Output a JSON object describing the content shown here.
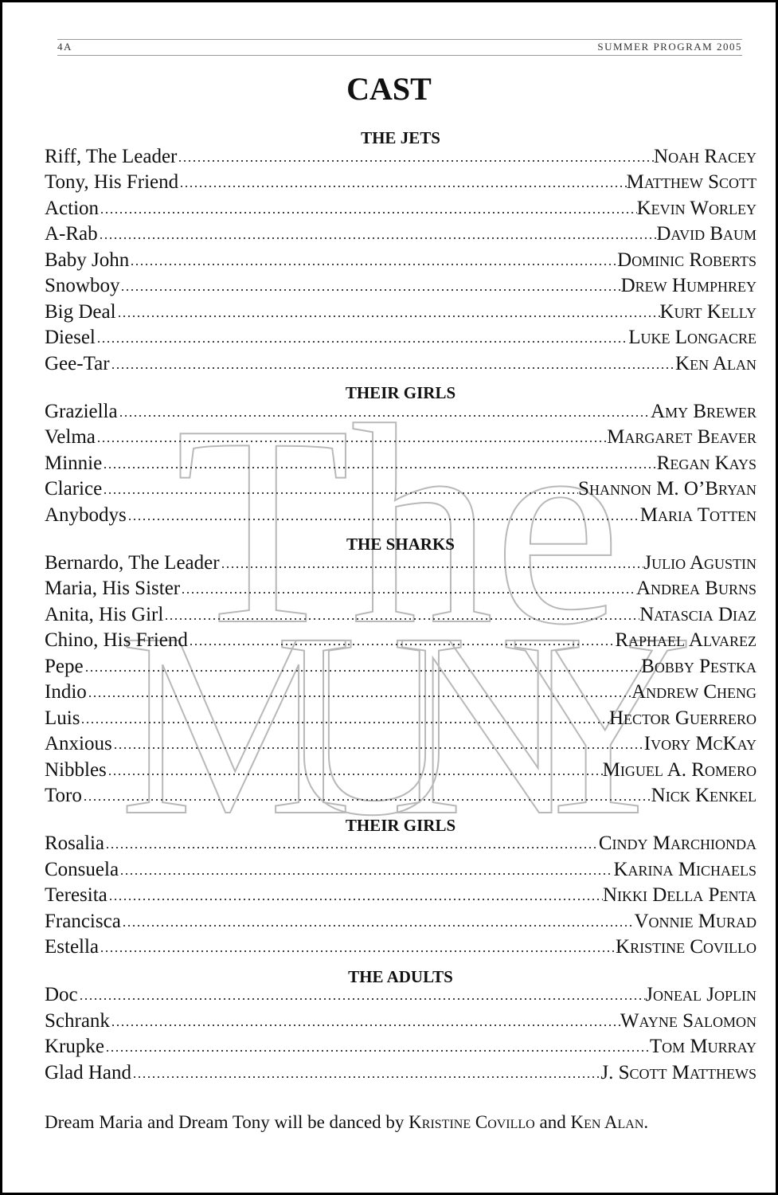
{
  "header": {
    "page_number": "4A",
    "publication": "SUMMER PROGRAM 2005"
  },
  "title": "CAST",
  "watermark": {
    "line1": "The",
    "line2": "MUNY"
  },
  "sections": [
    {
      "heading": "THE JETS",
      "rows": [
        {
          "role": "Riff, The Leader",
          "actor": "Noah Racey"
        },
        {
          "role": "Tony, His Friend",
          "actor": "Matthew Scott"
        },
        {
          "role": "Action",
          "actor": "Kevin Worley"
        },
        {
          "role": "A-Rab",
          "actor": "David Baum"
        },
        {
          "role": "Baby John",
          "actor": "Dominic Roberts"
        },
        {
          "role": "Snowboy",
          "actor": "Drew Humphrey"
        },
        {
          "role": "Big Deal",
          "actor": "Kurt Kelly"
        },
        {
          "role": "Diesel",
          "actor": "Luke Longacre"
        },
        {
          "role": "Gee-Tar",
          "actor": "Ken Alan"
        }
      ]
    },
    {
      "heading": "THEIR GIRLS",
      "rows": [
        {
          "role": "Graziella",
          "actor": "Amy Brewer"
        },
        {
          "role": "Velma",
          "actor": "Margaret Beaver"
        },
        {
          "role": "Minnie",
          "actor": "Regan Kays"
        },
        {
          "role": "Clarice",
          "actor": "Shannon M. O’Bryan"
        },
        {
          "role": "Anybodys",
          "actor": "Maria Totten"
        }
      ]
    },
    {
      "heading": "THE SHARKS",
      "rows": [
        {
          "role": "Bernardo, The Leader",
          "actor": "Julio Agustin"
        },
        {
          "role": "Maria, His Sister",
          "actor": "Andrea Burns"
        },
        {
          "role": "Anita, His Girl",
          "actor": "Natascia Diaz"
        },
        {
          "role": "Chino, His Friend",
          "actor": "Raphael Alvarez"
        },
        {
          "role": "Pepe",
          "actor": "Bobby Pestka"
        },
        {
          "role": "Indio",
          "actor": "Andrew Cheng"
        },
        {
          "role": "Luis",
          "actor": "Hector Guerrero"
        },
        {
          "role": "Anxious",
          "actor": "Ivory McKay"
        },
        {
          "role": "Nibbles",
          "actor": "Miguel A. Romero"
        },
        {
          "role": "Toro",
          "actor": "Nick Kenkel"
        }
      ]
    },
    {
      "heading": "THEIR GIRLS",
      "rows": [
        {
          "role": "Rosalia",
          "actor": "Cindy Marchionda"
        },
        {
          "role": "Consuela",
          "actor": "Karina Michaels"
        },
        {
          "role": "Teresita",
          "actor": "Nikki Della Penta"
        },
        {
          "role": "Francisca",
          "actor": "Vonnie Murad"
        },
        {
          "role": "Estella",
          "actor": "Kristine Covillo"
        }
      ]
    },
    {
      "heading": "THE ADULTS",
      "rows": [
        {
          "role": "Doc",
          "actor": "Joneal Joplin"
        },
        {
          "role": "Schrank",
          "actor": "Wayne Salomon"
        },
        {
          "role": "Krupke",
          "actor": "Tom Murray"
        },
        {
          "role": "Glad Hand",
          "actor": "J. Scott Matthews"
        }
      ]
    }
  ],
  "footnote": {
    "text_before": "Dream Maria and Dream Tony will be danced by ",
    "dancer1": "Kristine Covillo",
    "text_middle": " and ",
    "dancer2": "Ken Alan",
    "text_after": "."
  }
}
